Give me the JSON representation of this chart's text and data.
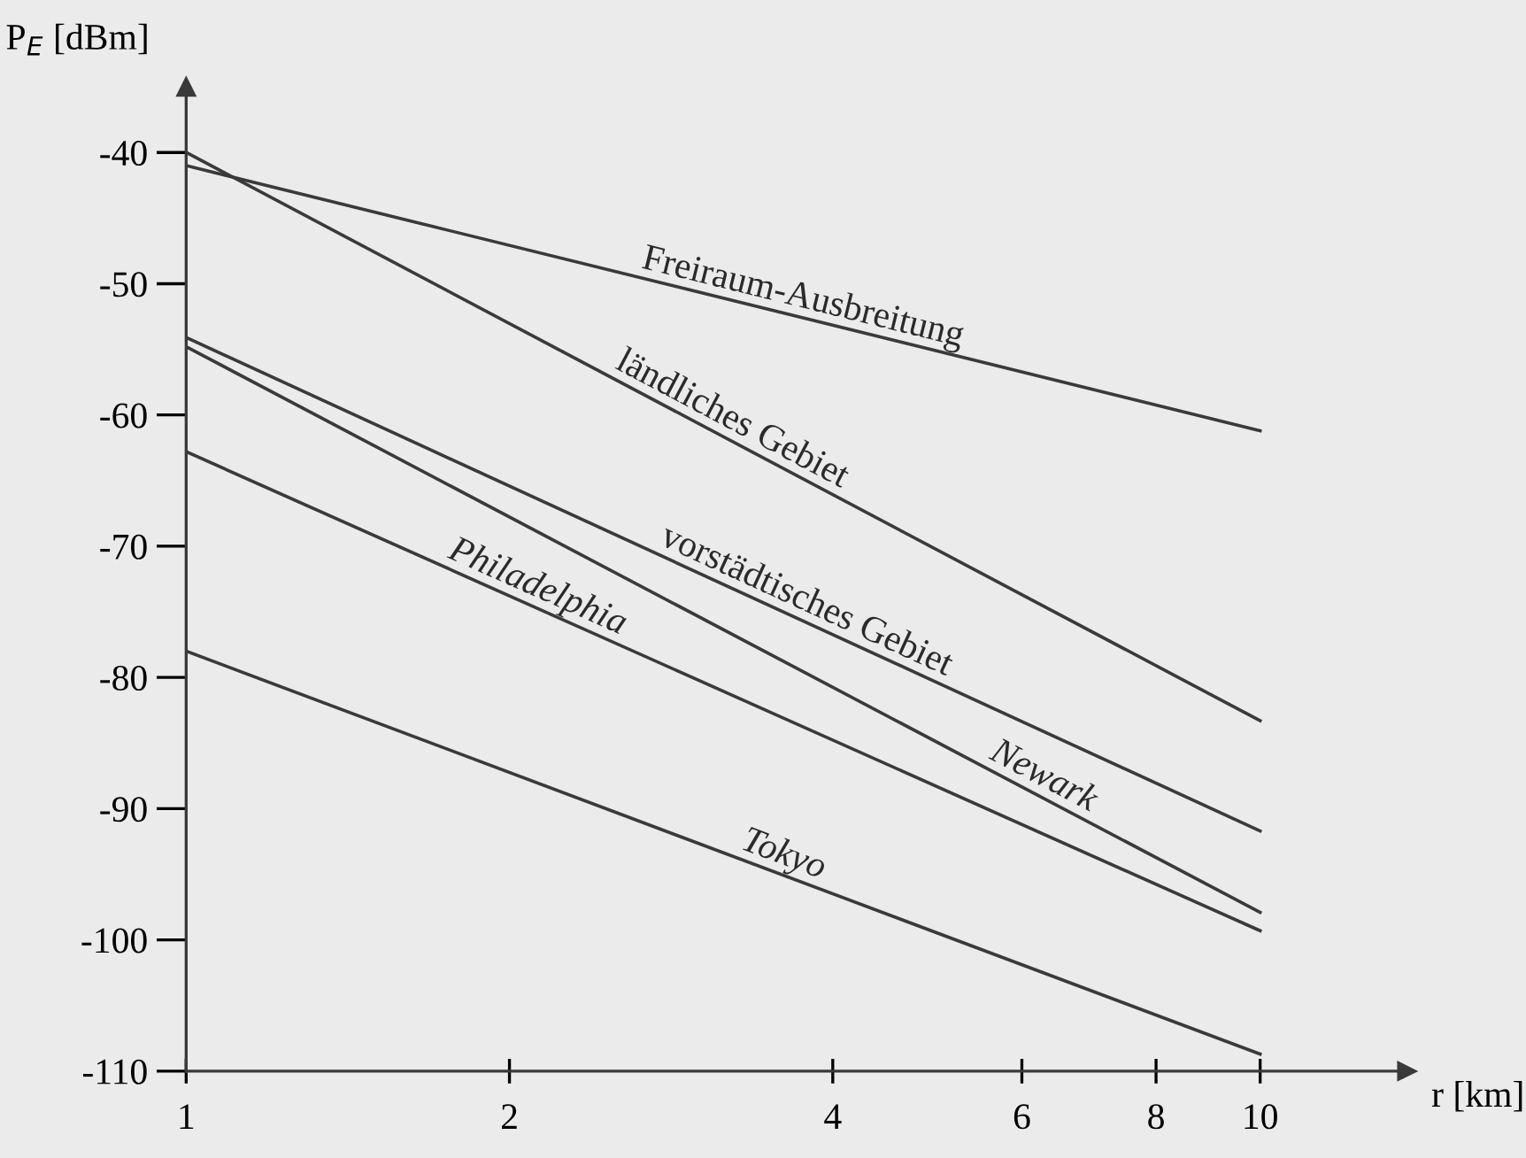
{
  "chart_data": {
    "type": "line",
    "ylabel": "P$_{E}$ [dBm]",
    "xlabel": "r [km]",
    "log": "x",
    "x": [
      1,
      10
    ],
    "series": [
      {
        "name": "Freiraum-Ausbreitung",
        "color": "#3a3a3a",
        "values": [
          -41,
          -61.2
        ]
      },
      {
        "name": "ländliches Gebiet",
        "color": "#3a3a3a",
        "values": [
          -40,
          -83.3
        ]
      },
      {
        "name": "vorstädtisches Gebiet",
        "color": "#3a3a3a",
        "values": [
          -54.1,
          -91.7
        ]
      },
      {
        "name": "Philadelphia",
        "color": "#3a3a3a",
        "values": [
          -62.8,
          -99.3
        ]
      },
      {
        "name": "Newark",
        "color": "#3a3a3a",
        "values": [
          -54.8,
          -97.9
        ]
      },
      {
        "name": "Tokyo",
        "color": "#3a3a3a",
        "values": [
          -78,
          -108.7
        ]
      }
    ],
    "xlim": [
      1,
      13.7
    ],
    "xticks": [
      1,
      2,
      4,
      6,
      8,
      10
    ],
    "ylim": [
      -110,
      -35
    ],
    "yticks": [
      -110,
      -100,
      -90,
      -80,
      -70,
      -60,
      -50,
      -40
    ],
    "grid": false,
    "legend": false,
    "marker": "none",
    "line_style": "solid"
  }
}
